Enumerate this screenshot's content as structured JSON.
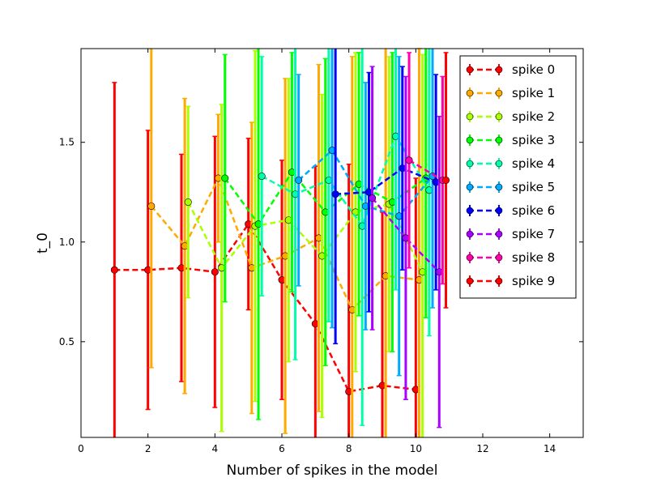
{
  "chart_data": {
    "type": "scatter",
    "title": "",
    "xlabel": "Number of spikes in the model",
    "ylabel": "t_0",
    "xlim": [
      0,
      15
    ],
    "ylim": [
      0.02,
      1.97
    ],
    "xticks": [
      0,
      2,
      4,
      6,
      8,
      10,
      12,
      14
    ],
    "yticks": [
      0.5,
      1.0,
      1.5
    ],
    "xtick_labels": [
      "0",
      "2",
      "4",
      "6",
      "8",
      "10",
      "12",
      "14"
    ],
    "ytick_labels": [
      "0.5",
      "1.0",
      "1.5"
    ],
    "grid": false,
    "legend_position": "top-right",
    "series": [
      {
        "name": "spike 0",
        "color": "#ff0000",
        "offset": 0.0,
        "x": [
          1,
          2,
          3,
          4,
          5,
          6,
          7,
          8,
          9,
          10
        ],
        "y": [
          0.86,
          0.86,
          0.87,
          0.85,
          1.09,
          0.81,
          0.59,
          0.25,
          0.28,
          0.26
        ],
        "err": [
          0.94,
          0.7,
          0.57,
          0.68,
          0.43,
          0.6,
          0.79,
          1.14,
          0.87,
          1.06
        ]
      },
      {
        "name": "spike 1",
        "color": "#ffaa00",
        "offset": 0.1,
        "x": [
          2,
          3,
          4,
          5,
          6,
          7,
          8,
          9,
          10
        ],
        "y": [
          1.18,
          0.98,
          1.32,
          0.87,
          0.93,
          1.02,
          0.66,
          0.83,
          0.81
        ],
        "err": [
          0.81,
          0.74,
          0.32,
          0.73,
          0.89,
          0.87,
          1.27,
          1.15,
          1.16
        ]
      },
      {
        "name": "spike 2",
        "color": "#aaff00",
        "offset": 0.2,
        "x": [
          3,
          4,
          5,
          6,
          7,
          8,
          9,
          10
        ],
        "y": [
          1.2,
          0.87,
          1.08,
          1.11,
          0.93,
          1.15,
          1.19,
          0.85
        ],
        "err": [
          0.48,
          0.82,
          0.88,
          0.71,
          0.81,
          0.8,
          0.74,
          1.09
        ]
      },
      {
        "name": "spike 3",
        "color": "#00ff00",
        "offset": 0.3,
        "x": [
          4,
          5,
          6,
          7,
          8,
          9,
          10
        ],
        "y": [
          1.32,
          1.09,
          1.35,
          1.15,
          1.29,
          1.2,
          1.32
        ],
        "err": [
          0.62,
          0.98,
          0.6,
          0.77,
          0.66,
          0.75,
          0.7
        ]
      },
      {
        "name": "spike 4",
        "color": "#00ffaa",
        "offset": 0.4,
        "x": [
          5,
          6,
          7,
          8,
          9,
          10
        ],
        "y": [
          1.33,
          1.24,
          1.31,
          1.08,
          1.53,
          1.26
        ],
        "err": [
          0.6,
          0.83,
          0.71,
          1.0,
          0.77,
          0.73
        ]
      },
      {
        "name": "spike 5",
        "color": "#00aaff",
        "offset": 0.5,
        "x": [
          6,
          7,
          8,
          9,
          10
        ],
        "y": [
          1.31,
          1.46,
          1.18,
          1.13,
          1.33
        ],
        "err": [
          0.53,
          0.89,
          0.62,
          0.8,
          0.66
        ]
      },
      {
        "name": "spike 6",
        "color": "#0000ff",
        "offset": 0.6,
        "x": [
          7,
          8,
          9,
          10
        ],
        "y": [
          1.24,
          1.25,
          1.37,
          1.3
        ],
        "err": [
          0.75,
          0.6,
          0.51,
          0.54
        ]
      },
      {
        "name": "spike 7",
        "color": "#aa00ff",
        "offset": 0.7,
        "x": [
          8,
          9,
          10
        ],
        "y": [
          1.22,
          1.02,
          0.85
        ],
        "err": [
          0.66,
          0.81,
          0.78
        ]
      },
      {
        "name": "spike 8",
        "color": "#ff00aa",
        "offset": 0.8,
        "x": [
          9,
          10
        ],
        "y": [
          1.41,
          1.31
        ],
        "err": [
          0.54,
          0.52
        ]
      },
      {
        "name": "spike 9",
        "color": "#ff0000",
        "offset": 0.9,
        "x": [
          10
        ],
        "y": [
          1.31
        ],
        "err": [
          0.64
        ]
      }
    ]
  }
}
